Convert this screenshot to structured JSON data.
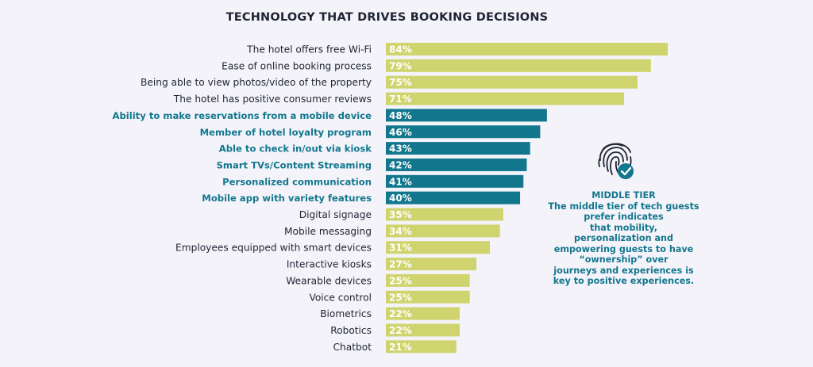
{
  "colors": {
    "highlight": "#12778d",
    "normal": "#cfd46e",
    "text": "#1f2433"
  },
  "chart_data": {
    "type": "bar",
    "orientation": "horizontal",
    "title": "TECHNOLOGY THAT DRIVES BOOKING DECISIONS",
    "categories": [
      "The hotel offers free Wi-Fi",
      "Ease of online booking process",
      "Being able to view photos/video of the property",
      "The hotel has positive consumer reviews",
      "Ability to make reservations from a mobile device",
      "Member of hotel loyalty program",
      "Able to check in/out via kiosk",
      "Smart TVs/Content Streaming",
      "Personalized communication",
      "Mobile app with variety features",
      "Digital signage",
      "Mobile messaging",
      "Employees equipped with smart devices",
      "Interactive kiosks",
      "Wearable devices",
      "Voice control",
      "Biometrics",
      "Robotics",
      "Chatbot"
    ],
    "values": [
      84,
      79,
      75,
      71,
      48,
      46,
      43,
      42,
      41,
      40,
      35,
      34,
      31,
      27,
      25,
      25,
      22,
      22,
      21
    ],
    "value_labels": [
      "84%",
      "79%",
      "75%",
      "71%",
      "48%",
      "46%",
      "43%",
      "42%",
      "41%",
      "40%",
      "35%",
      "34%",
      "31%",
      "27%",
      "25%",
      "25%",
      "22%",
      "22%",
      "21%"
    ],
    "highlighted": [
      false,
      false,
      false,
      false,
      true,
      true,
      true,
      true,
      true,
      true,
      false,
      false,
      false,
      false,
      false,
      false,
      false,
      false,
      false
    ]
  },
  "sidebar": {
    "heading": "MIDDLE TIER",
    "lines": [
      "The middle tier of tech guests",
      "prefer indicates",
      "that mobility,",
      "personalization and",
      "empowering guests to have",
      "“ownership” over",
      "journeys and experiences is",
      "key to positive experiences."
    ],
    "icon": "fingerprint-check-icon"
  }
}
